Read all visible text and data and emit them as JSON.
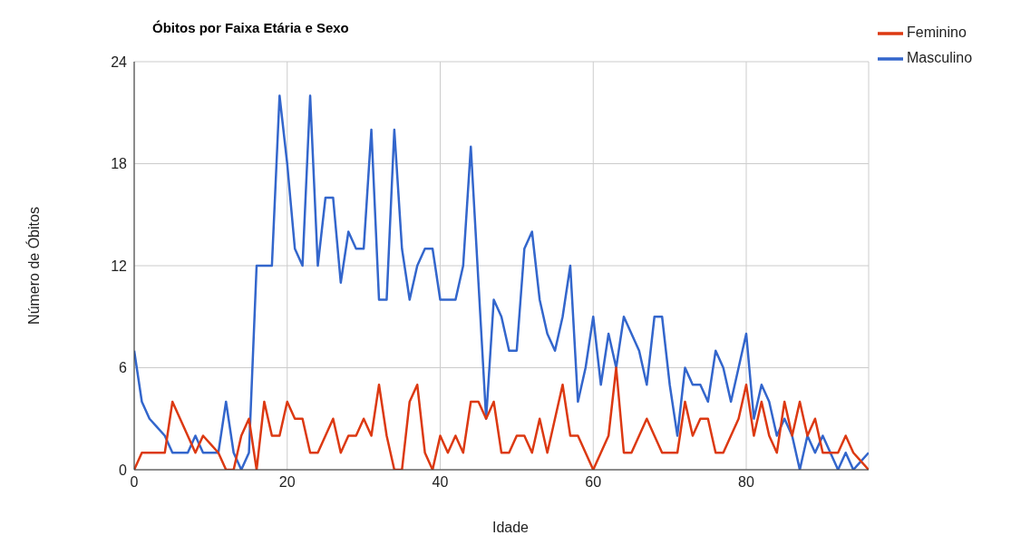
{
  "chart_data": {
    "type": "line",
    "title": "Óbitos por Faixa Etária e Sexo",
    "xlabel": "Idade",
    "ylabel": "Número de Óbitos",
    "x": [
      0,
      1,
      2,
      3,
      4,
      5,
      6,
      7,
      8,
      9,
      10,
      11,
      12,
      13,
      14,
      15,
      16,
      17,
      18,
      19,
      20,
      21,
      22,
      23,
      24,
      25,
      26,
      27,
      28,
      29,
      30,
      31,
      32,
      33,
      34,
      35,
      36,
      37,
      38,
      39,
      40,
      41,
      42,
      43,
      44,
      45,
      46,
      47,
      48,
      49,
      50,
      51,
      52,
      53,
      54,
      55,
      56,
      57,
      58,
      59,
      60,
      61,
      62,
      63,
      64,
      65,
      66,
      67,
      68,
      69,
      70,
      71,
      72,
      73,
      74,
      75,
      76,
      77,
      78,
      79,
      80,
      81,
      82,
      83,
      84,
      85,
      86,
      87,
      88,
      89,
      90,
      91,
      92,
      93,
      94,
      95,
      96
    ],
    "series": [
      {
        "name": "Masculino",
        "color": "#3366cc",
        "values": [
          7,
          4,
          3,
          2.5,
          2,
          1,
          1,
          1,
          2,
          1,
          1,
          1,
          4,
          1,
          0,
          1,
          12,
          12,
          12,
          22,
          18,
          13,
          12,
          22,
          12,
          16,
          16,
          11,
          14,
          13,
          13,
          20,
          10,
          10,
          20,
          13,
          10,
          12,
          13,
          13,
          10,
          10,
          10,
          12,
          19,
          11,
          3,
          10,
          9,
          7,
          7,
          13,
          14,
          10,
          8,
          7,
          9,
          12,
          4,
          6,
          9,
          5,
          8,
          6,
          9,
          8,
          7,
          5,
          9,
          9,
          5,
          2,
          6,
          5,
          5,
          4,
          7,
          6,
          4,
          6,
          8,
          3,
          5,
          4,
          2,
          3,
          2,
          0,
          2,
          1,
          2,
          1,
          0,
          1,
          0,
          0.5,
          1
        ]
      },
      {
        "name": "Feminino",
        "color": "#dc3912",
        "values": [
          0,
          1,
          1,
          1,
          1,
          4,
          3,
          2,
          1,
          2,
          1.5,
          1,
          0,
          0,
          2,
          3,
          0,
          4,
          2,
          2,
          4,
          3,
          3,
          1,
          1,
          2,
          3,
          1,
          2,
          2,
          3,
          2,
          5,
          2,
          0,
          0,
          4,
          5,
          1,
          0,
          2,
          1,
          2,
          1,
          4,
          4,
          3,
          4,
          1,
          1,
          2,
          2,
          1,
          3,
          1,
          3,
          5,
          2,
          2,
          1,
          0,
          1,
          2,
          6,
          1,
          1,
          2,
          3,
          2,
          1,
          1,
          1,
          4,
          2,
          3,
          3,
          1,
          1,
          2,
          3,
          5,
          2,
          4,
          2,
          1,
          4,
          2,
          4,
          2,
          3,
          1,
          1,
          1,
          2,
          1,
          0.5,
          0
        ]
      }
    ],
    "xlim": [
      0,
      96
    ],
    "xticks": [
      0,
      20,
      40,
      60,
      80
    ],
    "ylim": [
      0,
      24
    ],
    "yticks": [
      0,
      6,
      12,
      18,
      24
    ],
    "grid": true,
    "legend": "top right",
    "marker": "none",
    "line_style": "solid"
  }
}
